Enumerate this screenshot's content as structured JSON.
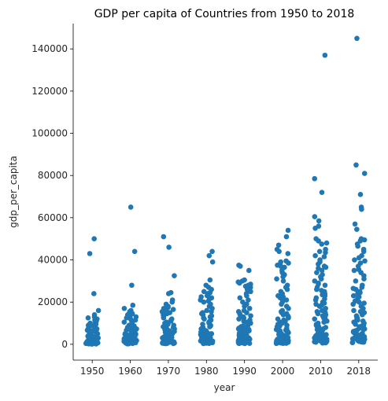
{
  "chart_data": {
    "type": "scatter",
    "title": "GDP per capita of Countries from 1950 to 2018",
    "xlabel": "year",
    "ylabel": "gdp_per_capita",
    "categories": [
      "1950",
      "1960",
      "1970",
      "1980",
      "1990",
      "2000",
      "2010",
      "2018"
    ],
    "yticks": [
      0,
      20000,
      40000,
      60000,
      80000,
      100000,
      120000,
      140000
    ],
    "ylim": [
      -7500,
      152000
    ],
    "grid": false,
    "color": "#1f77b4",
    "series": [
      {
        "category": "1950",
        "values": [
          50000,
          43000,
          24000,
          16000,
          14000,
          13000,
          12500,
          12000,
          11500,
          11000,
          10500,
          10000,
          9500,
          9000,
          8700,
          8300,
          8000,
          7600,
          7300,
          7000,
          6700,
          6400,
          6100,
          5800,
          5500,
          5200,
          5000,
          4800,
          4600,
          4400,
          4200,
          4000,
          3800,
          3600,
          3400,
          3200,
          3000,
          2800,
          2600,
          2400,
          2200,
          2000,
          1900,
          1800,
          1700,
          1600,
          1500,
          1400,
          1300,
          1200,
          1100,
          1000,
          950,
          900,
          850,
          800,
          750,
          700,
          650,
          600,
          550,
          500,
          450,
          400,
          350,
          300,
          250,
          200,
          150,
          100
        ]
      },
      {
        "category": "1960",
        "values": [
          65000,
          44000,
          28000,
          18500,
          17000,
          16000,
          15500,
          15000,
          14500,
          14000,
          13500,
          13000,
          12500,
          12000,
          11500,
          11000,
          10500,
          10000,
          9500,
          9000,
          8700,
          8300,
          8000,
          7600,
          7300,
          7000,
          6700,
          6400,
          6100,
          5800,
          5500,
          5200,
          5000,
          4800,
          4600,
          4400,
          4200,
          4000,
          3800,
          3600,
          3400,
          3200,
          3000,
          2800,
          2600,
          2400,
          2200,
          2000,
          1900,
          1800,
          1700,
          1600,
          1500,
          1400,
          1300,
          1200,
          1100,
          1000,
          950,
          900,
          850,
          800,
          750,
          700,
          650,
          600,
          550,
          500,
          450,
          400,
          350,
          300,
          250,
          200
        ]
      },
      {
        "category": "1970",
        "values": [
          51000,
          46000,
          32500,
          24500,
          24000,
          21000,
          20000,
          19000,
          18000,
          17500,
          17000,
          16500,
          16000,
          15500,
          15000,
          14500,
          14000,
          13500,
          13000,
          12500,
          12000,
          11500,
          11000,
          10500,
          10000,
          9500,
          9000,
          8700,
          8300,
          8000,
          7600,
          7300,
          7000,
          6700,
          6400,
          6100,
          5800,
          5500,
          5200,
          5000,
          4800,
          4600,
          4400,
          4200,
          4000,
          3800,
          3600,
          3400,
          3200,
          3000,
          2800,
          2600,
          2400,
          2200,
          2000,
          1900,
          1800,
          1700,
          1600,
          1500,
          1400,
          1300,
          1200,
          1100,
          1000,
          950,
          900,
          850,
          800,
          750,
          700,
          650,
          600,
          550,
          500,
          450,
          400,
          350,
          300
        ]
      },
      {
        "category": "1980",
        "values": [
          44000,
          42000,
          39000,
          30500,
          28000,
          27000,
          26000,
          25000,
          24500,
          24000,
          23500,
          23000,
          22500,
          22000,
          21500,
          21000,
          20500,
          20000,
          19000,
          18000,
          17000,
          16000,
          15500,
          15000,
          14500,
          14000,
          13500,
          13000,
          12500,
          12000,
          11500,
          11000,
          10500,
          10000,
          9500,
          9000,
          8700,
          8300,
          8000,
          7600,
          7300,
          7000,
          6700,
          6400,
          6100,
          5800,
          5500,
          5200,
          5000,
          4800,
          4600,
          4400,
          4200,
          4000,
          3800,
          3600,
          3400,
          3200,
          3000,
          2800,
          2600,
          2400,
          2200,
          2000,
          1900,
          1800,
          1700,
          1600,
          1500,
          1400,
          1300,
          1200,
          1100,
          1000,
          950,
          900,
          850,
          800,
          750,
          700,
          650,
          600,
          550,
          500,
          450,
          400,
          350
        ]
      },
      {
        "category": "1990",
        "values": [
          37500,
          37000,
          35000,
          30500,
          30000,
          29500,
          29000,
          28500,
          28000,
          27500,
          27000,
          26500,
          26000,
          25500,
          25000,
          24000,
          23000,
          22000,
          21000,
          20000,
          19000,
          18000,
          17000,
          16000,
          15500,
          15000,
          14500,
          14000,
          13500,
          13000,
          12500,
          12000,
          11500,
          11000,
          10500,
          10000,
          9500,
          9000,
          8700,
          8300,
          8000,
          7600,
          7300,
          7000,
          6700,
          6400,
          6100,
          5800,
          5500,
          5200,
          5000,
          4800,
          4600,
          4400,
          4200,
          4000,
          3800,
          3600,
          3400,
          3200,
          3000,
          2800,
          2600,
          2400,
          2200,
          2000,
          1900,
          1800,
          1700,
          1600,
          1500,
          1400,
          1300,
          1200,
          1100,
          1000,
          950,
          900,
          850,
          800,
          750,
          700,
          650,
          600,
          550,
          500,
          450,
          400,
          350
        ]
      },
      {
        "category": "2000",
        "values": [
          54000,
          51000,
          47000,
          45000,
          44000,
          43000,
          39500,
          39000,
          38500,
          38000,
          37500,
          37000,
          36500,
          36000,
          35000,
          34000,
          33000,
          32000,
          31000,
          30000,
          28000,
          27000,
          26000,
          25000,
          24000,
          23000,
          22500,
          22000,
          21500,
          21000,
          20000,
          19000,
          18000,
          17000,
          16000,
          15500,
          15000,
          14500,
          14000,
          13500,
          13000,
          12500,
          12000,
          11500,
          11000,
          10500,
          10000,
          9500,
          9000,
          8700,
          8300,
          8000,
          7600,
          7300,
          7000,
          6700,
          6400,
          6100,
          5800,
          5500,
          5200,
          5000,
          4800,
          4600,
          4400,
          4200,
          4000,
          3800,
          3600,
          3400,
          3200,
          3000,
          2800,
          2600,
          2400,
          2200,
          2000,
          1900,
          1800,
          1700,
          1600,
          1500,
          1400,
          1300,
          1200,
          1100,
          1000,
          950,
          900,
          850,
          800,
          750,
          700,
          650,
          600,
          550,
          500,
          450,
          400
        ]
      },
      {
        "category": "2010",
        "values": [
          137000,
          78500,
          72000,
          60500,
          58500,
          56000,
          55000,
          50000,
          49000,
          48000,
          47500,
          45000,
          44000,
          43500,
          42000,
          41500,
          40000,
          39000,
          38000,
          37000,
          36500,
          36000,
          35000,
          34000,
          33000,
          32000,
          31000,
          30000,
          29000,
          28500,
          28000,
          27000,
          26000,
          25500,
          25000,
          24000,
          23500,
          23000,
          22000,
          21500,
          21000,
          20000,
          19500,
          19000,
          18500,
          18000,
          17000,
          16000,
          15500,
          15000,
          14500,
          14000,
          13500,
          13000,
          12500,
          12000,
          11500,
          11000,
          10500,
          10000,
          9500,
          9000,
          8700,
          8300,
          8000,
          7600,
          7300,
          7000,
          6700,
          6400,
          6100,
          5800,
          5500,
          5200,
          5000,
          4800,
          4600,
          4400,
          4200,
          4000,
          3800,
          3600,
          3400,
          3200,
          3000,
          2800,
          2600,
          2400,
          2200,
          2000,
          1900,
          1800,
          1700,
          1600,
          1500,
          1400,
          1300,
          1200,
          1100,
          1000,
          900,
          800,
          700,
          600
        ]
      },
      {
        "category": "2018",
        "values": [
          145000,
          85000,
          81000,
          71000,
          65000,
          64000,
          57000,
          54500,
          50000,
          49500,
          49000,
          47500,
          46500,
          45000,
          44000,
          42000,
          41000,
          40000,
          39500,
          38500,
          37000,
          35500,
          35000,
          34000,
          32500,
          31000,
          30000,
          28000,
          27000,
          26500,
          26000,
          25000,
          24500,
          24000,
          23000,
          22500,
          22000,
          21000,
          20500,
          20000,
          19500,
          19000,
          18000,
          17000,
          16000,
          15500,
          15000,
          14500,
          14000,
          13500,
          13000,
          12500,
          12000,
          11500,
          11000,
          10500,
          10000,
          9500,
          9000,
          8700,
          8300,
          8000,
          7600,
          7300,
          7000,
          6700,
          6400,
          6100,
          5800,
          5500,
          5200,
          5000,
          4800,
          4600,
          4400,
          4200,
          4000,
          3800,
          3600,
          3400,
          3200,
          3000,
          2800,
          2600,
          2400,
          2200,
          2000,
          1900,
          1800,
          1700,
          1600,
          1500,
          1400,
          1300,
          1200,
          1100,
          1000,
          900,
          800
        ]
      }
    ]
  }
}
